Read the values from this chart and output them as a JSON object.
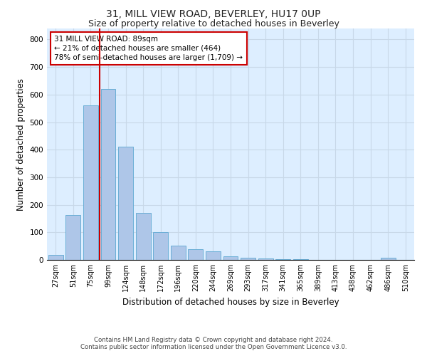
{
  "title": "31, MILL VIEW ROAD, BEVERLEY, HU17 0UP",
  "subtitle": "Size of property relative to detached houses in Beverley",
  "xlabel": "Distribution of detached houses by size in Beverley",
  "ylabel": "Number of detached properties",
  "footer_line1": "Contains HM Land Registry data © Crown copyright and database right 2024.",
  "footer_line2": "Contains public sector information licensed under the Open Government Licence v3.0.",
  "bar_labels": [
    "27sqm",
    "51sqm",
    "75sqm",
    "99sqm",
    "124sqm",
    "148sqm",
    "172sqm",
    "196sqm",
    "220sqm",
    "244sqm",
    "269sqm",
    "293sqm",
    "317sqm",
    "341sqm",
    "365sqm",
    "389sqm",
    "413sqm",
    "438sqm",
    "462sqm",
    "486sqm",
    "510sqm"
  ],
  "bar_values": [
    18,
    163,
    560,
    620,
    410,
    170,
    100,
    52,
    40,
    30,
    13,
    7,
    5,
    2,
    3,
    1,
    0,
    0,
    0,
    8,
    0
  ],
  "bar_color": "#aec6e8",
  "bar_edge_color": "#6aaed6",
  "ylim": [
    0,
    840
  ],
  "yticks": [
    0,
    100,
    200,
    300,
    400,
    500,
    600,
    700,
    800
  ],
  "vline_bin": 2.5,
  "annotation_text_line1": "31 MILL VIEW ROAD: 89sqm",
  "annotation_text_line2": "← 21% of detached houses are smaller (464)",
  "annotation_text_line3": "78% of semi-detached houses are larger (1,709) →",
  "annotation_box_color": "#ffffff",
  "annotation_border_color": "#cc0000",
  "grid_color": "#c8d8e8",
  "background_color": "#ddeeff",
  "title_fontsize": 10,
  "subtitle_fontsize": 9,
  "xlabel_fontsize": 8.5,
  "ylabel_fontsize": 8.5,
  "annotation_fontsize": 7.5,
  "tick_label_fontsize": 7
}
